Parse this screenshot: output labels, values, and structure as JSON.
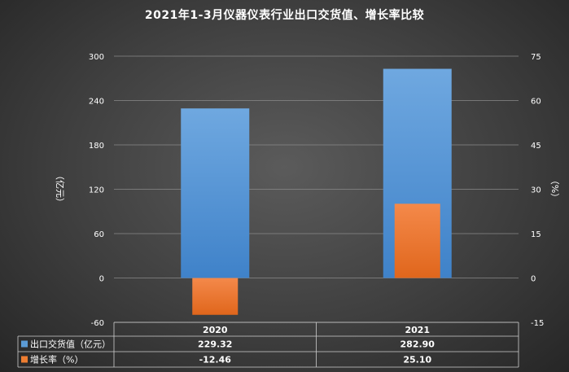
{
  "chart_data": {
    "type": "bar",
    "title": "2021年1-3月仪器仪表行业出口交货值、增长率比较",
    "categories": [
      "2020",
      "2021"
    ],
    "series": [
      {
        "name": "出口交货值（亿元）",
        "axis": "left",
        "color": "#5b9bd5",
        "values": [
          229.32,
          282.9
        ],
        "labels": [
          "229.32",
          "282.90"
        ]
      },
      {
        "name": "增长率（%）",
        "axis": "right",
        "color": "#ed7d31",
        "values": [
          -12.46,
          25.1
        ],
        "labels": [
          "-12.46",
          "25.10"
        ]
      }
    ],
    "ylabel_left": "（亿元）",
    "ylabel_right": "（%）",
    "ylim_left": [
      -60,
      300
    ],
    "ylim_right": [
      -15,
      75
    ],
    "yticks_left": [
      "-60",
      "0",
      "60",
      "120",
      "180",
      "240",
      "300"
    ],
    "yticks_right": [
      "-15",
      "0",
      "15",
      "30",
      "45",
      "60",
      "75"
    ],
    "grid": true,
    "legend": "data-table"
  }
}
